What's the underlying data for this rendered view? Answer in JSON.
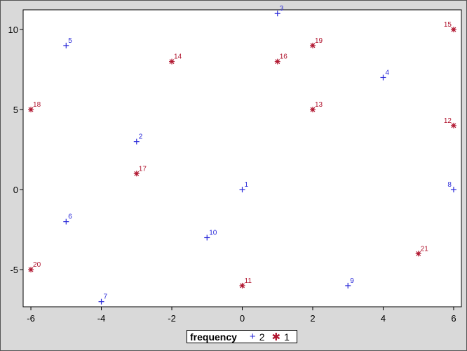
{
  "chart_data": {
    "type": "scatter",
    "xlim": [
      -6.22,
      6.22
    ],
    "ylim": [
      -7.32,
      11.23
    ],
    "xticks": [
      -6,
      -4,
      -2,
      0,
      2,
      4,
      6
    ],
    "yticks": [
      -5,
      0,
      5,
      10
    ],
    "grid": false,
    "legend": {
      "title": "frequency",
      "placement": "bottom"
    },
    "series": [
      {
        "name": "2",
        "symbol": "+",
        "color": "#2b2bd9",
        "points": [
          {
            "x": 0,
            "y": 0,
            "label": "1"
          },
          {
            "x": -3,
            "y": 3,
            "label": "2"
          },
          {
            "x": 1,
            "y": 11,
            "label": "3"
          },
          {
            "x": 4,
            "y": 7,
            "label": "4"
          },
          {
            "x": -5,
            "y": 9,
            "label": "5"
          },
          {
            "x": -5,
            "y": -2,
            "label": "6"
          },
          {
            "x": -4,
            "y": -7,
            "label": "7"
          },
          {
            "x": 6,
            "y": 0,
            "label": "8"
          },
          {
            "x": 3,
            "y": -6,
            "label": "9"
          },
          {
            "x": -1,
            "y": -3,
            "label": "10"
          }
        ]
      },
      {
        "name": "1",
        "symbol": "*",
        "color": "#b0142e",
        "points": [
          {
            "x": 0,
            "y": -6,
            "label": "11"
          },
          {
            "x": 6,
            "y": 4,
            "label": "12"
          },
          {
            "x": 2,
            "y": 5,
            "label": "13"
          },
          {
            "x": -2,
            "y": 8,
            "label": "14"
          },
          {
            "x": 6,
            "y": 10,
            "label": "15"
          },
          {
            "x": 1,
            "y": 8,
            "label": "16"
          },
          {
            "x": -3,
            "y": 1,
            "label": "17"
          },
          {
            "x": -6,
            "y": 5,
            "label": "18"
          },
          {
            "x": 2,
            "y": 9,
            "label": "19"
          },
          {
            "x": -6,
            "y": -5,
            "label": "20"
          },
          {
            "x": 5,
            "y": -4,
            "label": "21"
          }
        ]
      }
    ]
  }
}
